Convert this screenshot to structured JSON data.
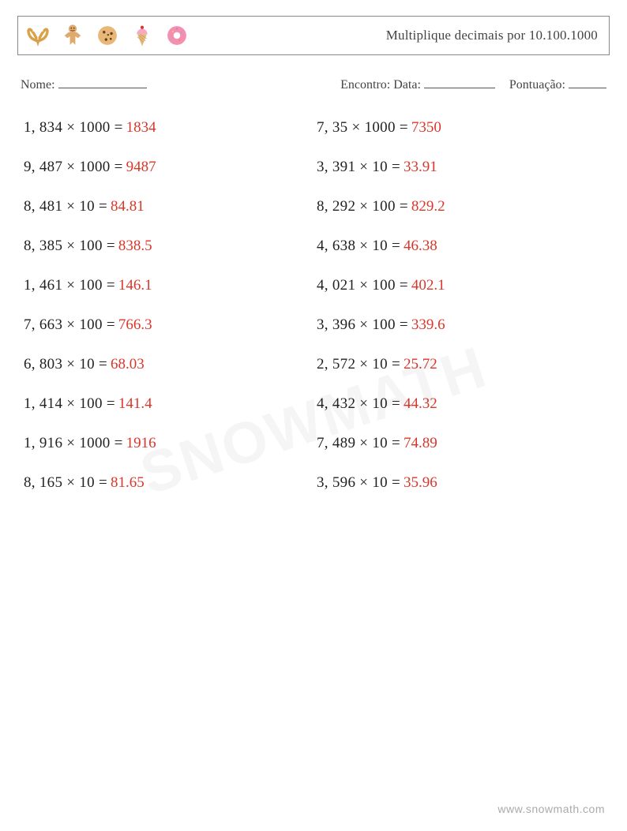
{
  "header": {
    "title": "Multiplique decimais por 10.100.1000",
    "icons": [
      "pretzel-icon",
      "gingerbread-icon",
      "cookie-icon",
      "icecream-icon",
      "donut-icon"
    ]
  },
  "meta": {
    "name_label": "Nome:",
    "name_line_width": 112,
    "encounter_label": "Encontro: Data:",
    "encounter_line_width": 90,
    "score_label": "Pontuação:",
    "score_line_width": 48
  },
  "styles": {
    "text_color": "#333333",
    "answer_color": "#d9372b",
    "border_color": "#888888",
    "background_color": "#ffffff",
    "watermark_color": "rgba(0,0,0,0.04)",
    "footer_color": "#aaaaaa",
    "font_family": "Georgia, 'Times New Roman', serif",
    "problem_fontsize": 19,
    "title_fontsize": 17,
    "meta_fontsize": 16,
    "row_gap": 28
  },
  "problems": {
    "left": [
      {
        "a_int": "1",
        "a_dec": "834",
        "b": "1000",
        "ans": "1834"
      },
      {
        "a_int": "9",
        "a_dec": "487",
        "b": "1000",
        "ans": "9487"
      },
      {
        "a_int": "8",
        "a_dec": "481",
        "b": "10",
        "ans": "84.81"
      },
      {
        "a_int": "8",
        "a_dec": "385",
        "b": "100",
        "ans": "838.5"
      },
      {
        "a_int": "1",
        "a_dec": "461",
        "b": "100",
        "ans": "146.1"
      },
      {
        "a_int": "7",
        "a_dec": "663",
        "b": "100",
        "ans": "766.3"
      },
      {
        "a_int": "6",
        "a_dec": "803",
        "b": "10",
        "ans": "68.03"
      },
      {
        "a_int": "1",
        "a_dec": "414",
        "b": "100",
        "ans": "141.4"
      },
      {
        "a_int": "1",
        "a_dec": "916",
        "b": "1000",
        "ans": "1916"
      },
      {
        "a_int": "8",
        "a_dec": "165",
        "b": "10",
        "ans": "81.65"
      }
    ],
    "right": [
      {
        "a_int": "7",
        "a_dec": "35",
        "b": "1000",
        "ans": "7350"
      },
      {
        "a_int": "3",
        "a_dec": "391",
        "b": "10",
        "ans": "33.91"
      },
      {
        "a_int": "8",
        "a_dec": "292",
        "b": "100",
        "ans": "829.2"
      },
      {
        "a_int": "4",
        "a_dec": "638",
        "b": "10",
        "ans": "46.38"
      },
      {
        "a_int": "4",
        "a_dec": "021",
        "b": "100",
        "ans": "402.1"
      },
      {
        "a_int": "3",
        "a_dec": "396",
        "b": "100",
        "ans": "339.6"
      },
      {
        "a_int": "2",
        "a_dec": "572",
        "b": "10",
        "ans": "25.72"
      },
      {
        "a_int": "4",
        "a_dec": "432",
        "b": "10",
        "ans": "44.32"
      },
      {
        "a_int": "7",
        "a_dec": "489",
        "b": "10",
        "ans": "74.89"
      },
      {
        "a_int": "3",
        "a_dec": "596",
        "b": "10",
        "ans": "35.96"
      }
    ]
  },
  "watermark": "SNOWMATH",
  "footer": "www.snowmath.com"
}
